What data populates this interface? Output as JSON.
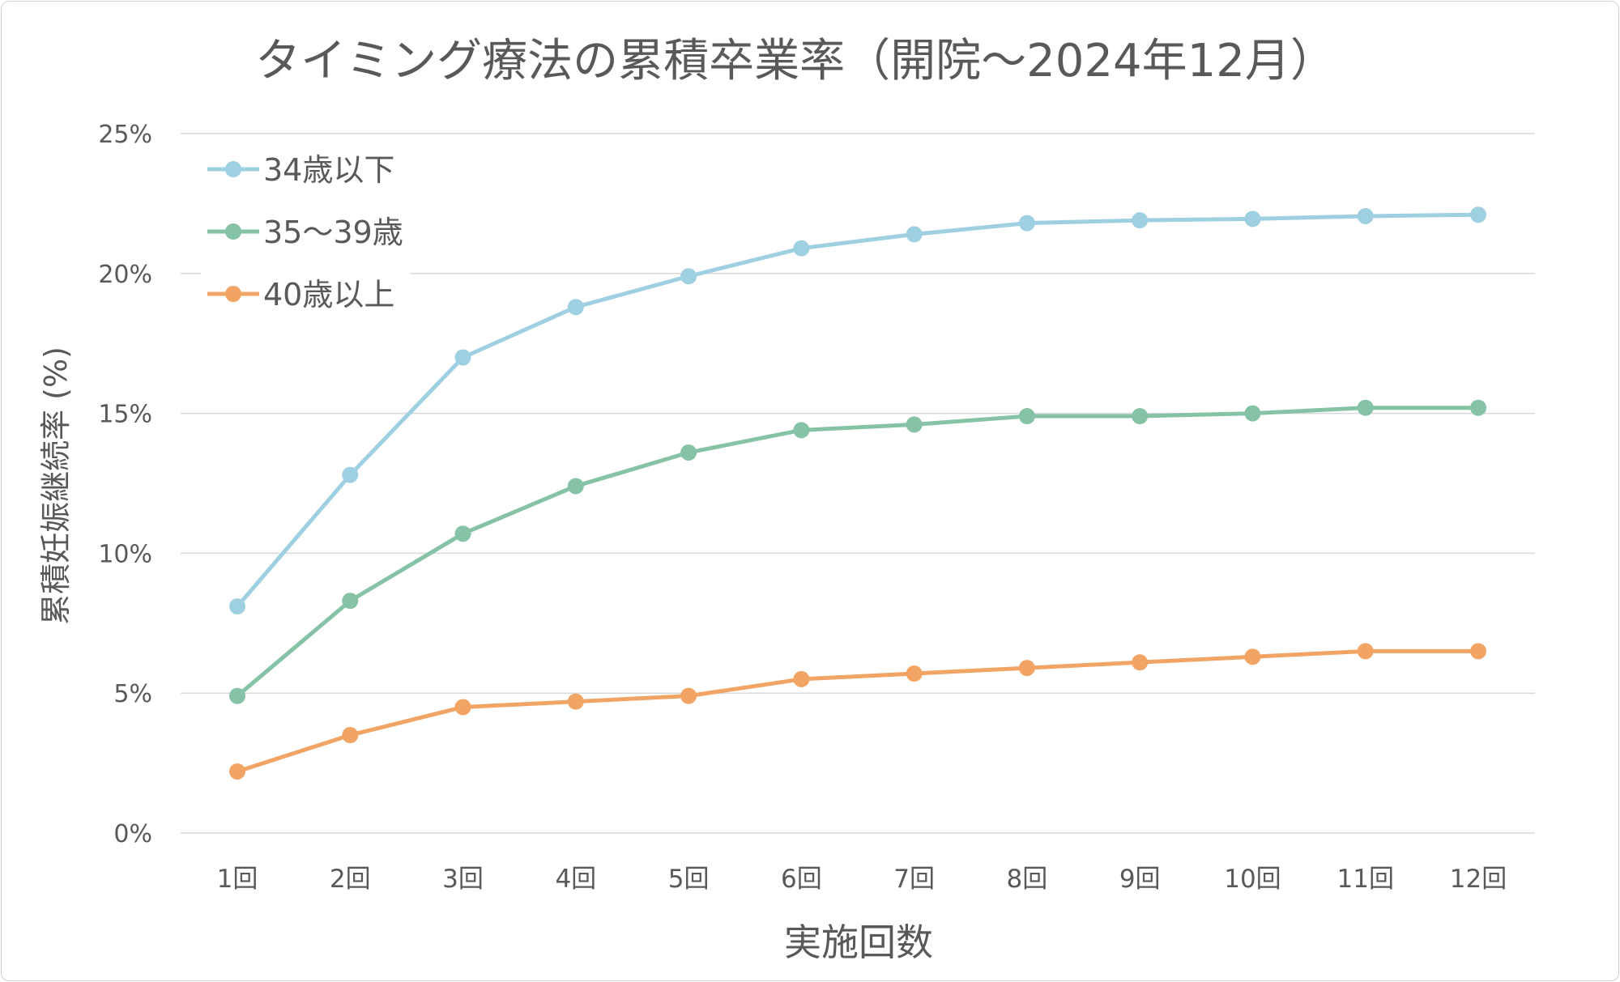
{
  "chart_data": {
    "type": "line",
    "title": "タイミング療法の累積卒業率（開院〜2024年12月）",
    "xlabel": "実施回数",
    "ylabel": "累積妊娠継続率 (%)",
    "categories": [
      "1回",
      "2回",
      "3回",
      "4回",
      "5回",
      "6回",
      "7回",
      "8回",
      "9回",
      "10回",
      "11回",
      "12回"
    ],
    "yticks": [
      "0%",
      "5%",
      "10%",
      "15%",
      "20%",
      "25%"
    ],
    "ylim": [
      0,
      25
    ],
    "grid": true,
    "legend_position": "top-left",
    "series": [
      {
        "name": "34歳以下",
        "color": "#9fd0e1",
        "values": [
          8.1,
          12.8,
          17.0,
          18.8,
          19.9,
          20.9,
          21.4,
          21.8,
          21.9,
          21.95,
          22.05,
          22.1
        ]
      },
      {
        "name": "35〜39歳",
        "color": "#86c2a6",
        "values": [
          4.9,
          8.3,
          10.7,
          12.4,
          13.6,
          14.4,
          14.6,
          14.9,
          14.9,
          15.0,
          15.2,
          15.2
        ]
      },
      {
        "name": "40歳以上",
        "color": "#f2a465",
        "values": [
          2.2,
          3.5,
          4.5,
          4.7,
          4.9,
          5.5,
          5.7,
          5.9,
          6.1,
          6.3,
          6.5,
          6.5
        ]
      }
    ]
  }
}
